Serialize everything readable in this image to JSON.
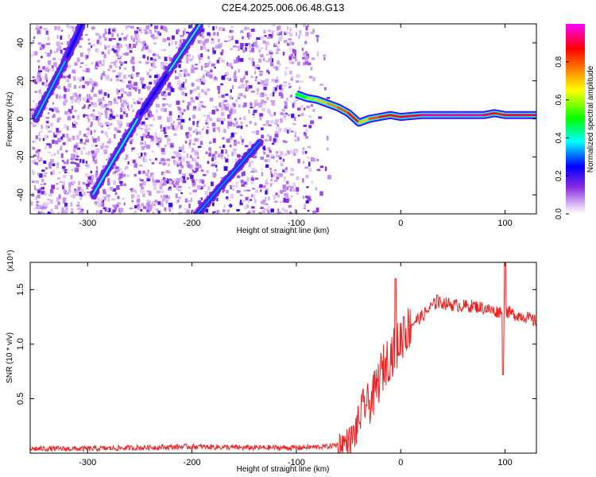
{
  "title": "C2E4.2025.006.06.48.G13",
  "chart_data": [
    {
      "type": "heatmap",
      "name": "spectrogram",
      "xlabel": "Height of straight line (km)",
      "ylabel": "Frequency (Hz)",
      "xlim": [
        -355,
        130
      ],
      "ylim": [
        -50,
        50
      ],
      "xticks": [
        -300,
        -200,
        -100,
        0,
        100
      ],
      "xtick_labels": [
        "-300",
        "-200",
        "-100",
        "0",
        "100"
      ],
      "yticks": [
        -40,
        -20,
        0,
        20,
        40
      ],
      "ytick_labels": [
        "-40",
        "-20",
        "0",
        "20",
        "40"
      ],
      "colorbar": {
        "label": "Normalized spectral amplitude",
        "range": [
          0,
          1
        ],
        "ticks": [
          0.0,
          0.2,
          0.4,
          0.6,
          0.8
        ],
        "tick_labels": [
          "0.0",
          "0.2",
          "0.4",
          "0.6",
          "0.8"
        ],
        "colors": [
          "#ffffff",
          "#8a2be2",
          "#0000ff",
          "#00ffff",
          "#00ff00",
          "#ffff00",
          "#ff8000",
          "#ff0000",
          "#ff00ff"
        ]
      },
      "ridges": [
        {
          "x": [
            -350,
            -320
          ],
          "y": [
            0,
            32
          ],
          "level": 0.35
        },
        {
          "x": [
            -320,
            -305
          ],
          "y": [
            32,
            50
          ],
          "level": 0.25
        },
        {
          "x": [
            -295,
            -250
          ],
          "y": [
            -40,
            2
          ],
          "level": 0.38
        },
        {
          "x": [
            -250,
            -222
          ],
          "y": [
            2,
            25
          ],
          "level": 0.25
        },
        {
          "x": [
            -222,
            -192
          ],
          "y": [
            25,
            50
          ],
          "level": 0.38
        },
        {
          "x": [
            -195,
            -135
          ],
          "y": [
            -50,
            -12
          ],
          "level": 0.32
        }
      ],
      "band": {
        "x": [
          -100,
          -90,
          -80,
          -70,
          -60,
          -50,
          -40,
          -30,
          -20,
          -10,
          0,
          20,
          40,
          60,
          80,
          90,
          100,
          130
        ],
        "y": [
          13,
          11,
          10,
          8,
          6,
          3,
          -2,
          0,
          1,
          2,
          1,
          2,
          2,
          2,
          2,
          3,
          2,
          2
        ],
        "level": [
          0.5,
          0.6,
          0.7,
          0.75,
          0.8,
          0.85,
          0.7,
          0.8,
          0.85,
          0.85,
          0.9,
          0.95,
          0.95,
          0.95,
          0.9,
          0.85,
          0.9,
          0.95
        ]
      }
    },
    {
      "type": "line",
      "name": "snr",
      "xlabel": "Height of straight line (km)",
      "ylabel": "SNR (10 * v/v)",
      "multiplier_label": "(x10⁴)",
      "xlim": [
        -355,
        130
      ],
      "ylim": [
        0,
        1.75
      ],
      "xticks": [
        -300,
        -200,
        -100,
        0,
        100
      ],
      "xtick_labels": [
        "-300",
        "-200",
        "-100",
        "0",
        "100"
      ],
      "yticks": [
        0.5,
        1.0,
        1.5
      ],
      "ytick_labels": [
        "0.5",
        "1.0",
        "1.5"
      ],
      "color": "#ee2222",
      "x": [
        -355,
        -300,
        -250,
        -200,
        -150,
        -100,
        -70,
        -60,
        -50,
        -45,
        -40,
        -35,
        -30,
        -25,
        -20,
        -15,
        -10,
        -5,
        0,
        5,
        10,
        15,
        20,
        25,
        30,
        35,
        40,
        50,
        60,
        70,
        80,
        90,
        100,
        110,
        120,
        130
      ],
      "y": [
        0.04,
        0.04,
        0.05,
        0.06,
        0.05,
        0.05,
        0.06,
        0.08,
        0.1,
        0.15,
        0.3,
        0.45,
        0.45,
        0.55,
        0.7,
        0.82,
        0.9,
        0.95,
        1.05,
        1.12,
        1.18,
        1.22,
        1.25,
        1.3,
        1.35,
        1.38,
        1.38,
        1.36,
        1.35,
        1.35,
        1.33,
        1.3,
        1.3,
        1.27,
        1.25,
        1.2
      ],
      "spikes": [
        {
          "x": -5,
          "y": 1.6
        },
        {
          "x": 3,
          "y": 1.25
        },
        {
          "x": 98,
          "y": 0.72
        },
        {
          "x": 100,
          "y": 1.75
        },
        {
          "x": 35,
          "y": 1.45
        }
      ]
    }
  ]
}
